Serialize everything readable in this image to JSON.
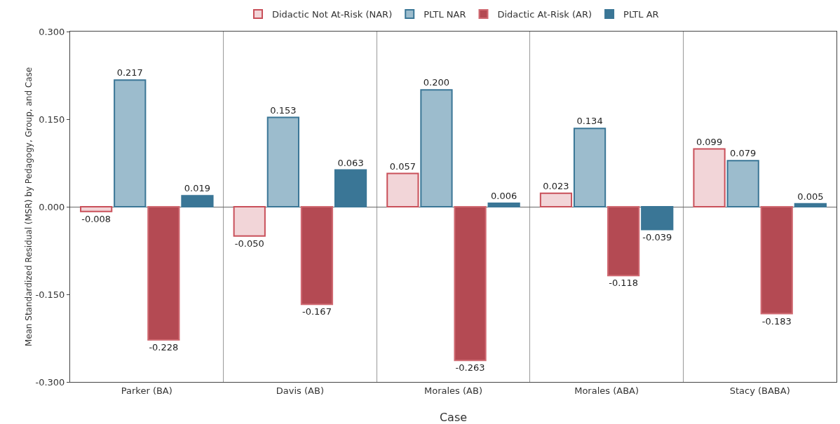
{
  "chart_data": {
    "type": "bar",
    "xlabel": "Case",
    "ylabel": "Mean Standardized Residual (MSR) by Pedagogy, Group, and Case",
    "categories": [
      "Parker (BA)",
      "Davis (AB)",
      "Morales (AB)",
      "Morales (ABA)",
      "Stacy (BABA)"
    ],
    "series": [
      {
        "name": "Didactic Not At-Risk (NAR)",
        "color": "#f2d5d8",
        "values": [
          -0.008,
          -0.05,
          0.057,
          0.023,
          0.099
        ],
        "value_labels": [
          "-0.008",
          "-0.050",
          "0.057",
          "0.023",
          "0.099"
        ]
      },
      {
        "name": "PLTL NAR",
        "color": "#9cbccd",
        "values": [
          0.217,
          0.153,
          0.2,
          0.134,
          0.079
        ],
        "value_labels": [
          "0.217",
          "0.153",
          "0.200",
          "0.134",
          "0.079"
        ]
      },
      {
        "name": "Didactic At-Risk (AR)",
        "color": "#b44a53",
        "values": [
          -0.228,
          -0.167,
          -0.263,
          -0.118,
          -0.183
        ],
        "value_labels": [
          "-0.228",
          "-0.167",
          "-0.263",
          "-0.118",
          "-0.183"
        ]
      },
      {
        "name": "PLTL AR",
        "color": "#3a7696",
        "values": [
          0.019,
          0.063,
          0.006,
          -0.039,
          0.005
        ],
        "value_labels": [
          "0.019",
          "0.063",
          "0.006",
          "-0.039",
          "0.005"
        ]
      }
    ],
    "ylim": [
      -0.3,
      0.3
    ],
    "yticks": [
      {
        "value": -0.3,
        "label": "-0.300"
      },
      {
        "value": -0.15,
        "label": "-0.150"
      },
      {
        "value": 0,
        "label": "0.000"
      },
      {
        "value": 0.15,
        "label": "0.150"
      },
      {
        "value": 0.3,
        "label": "0.300"
      }
    ],
    "grid": "x",
    "legend": "top"
  }
}
